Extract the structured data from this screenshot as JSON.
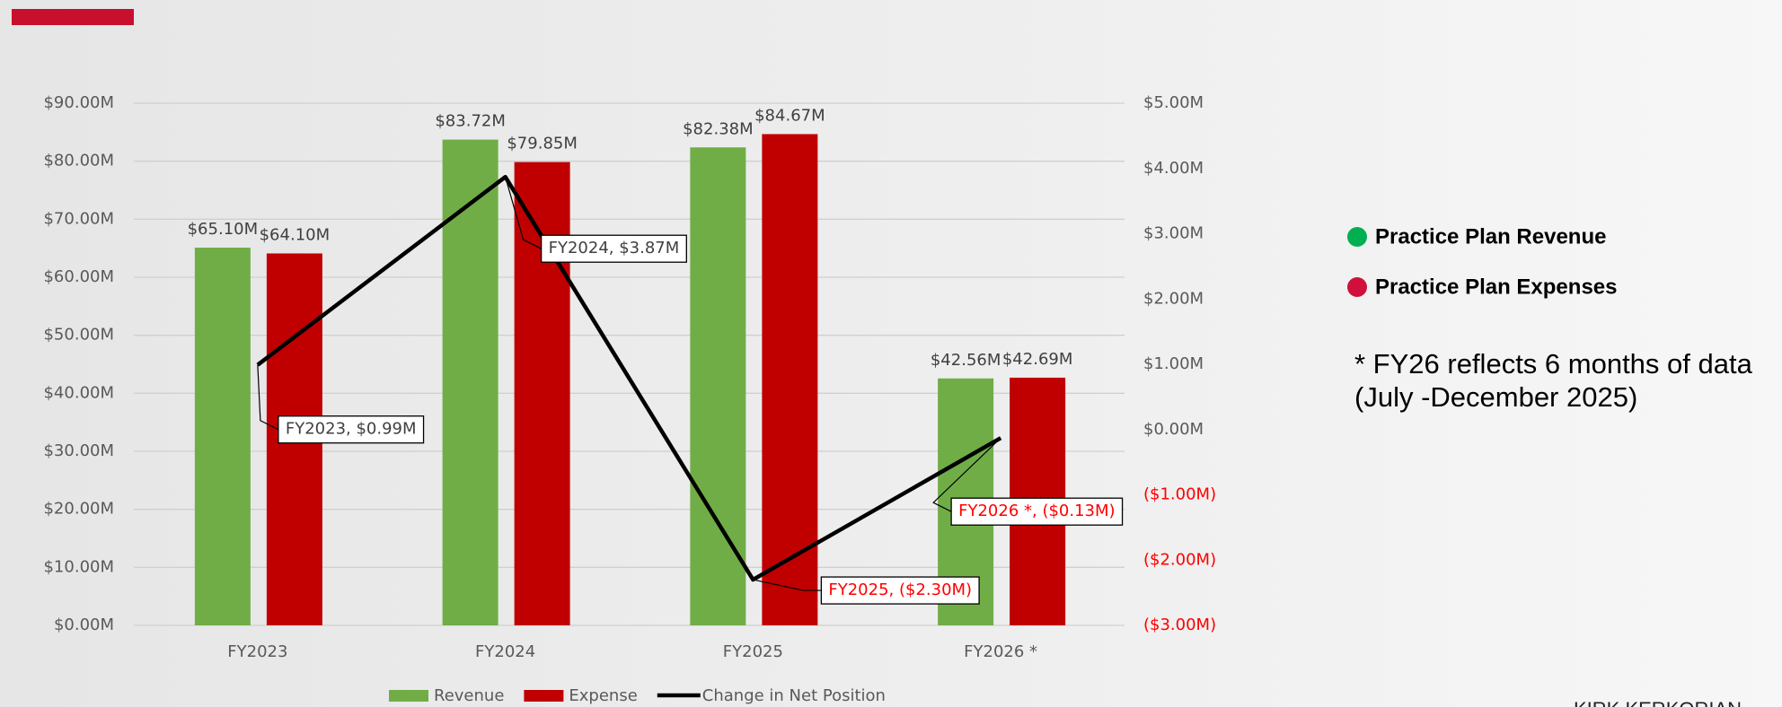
{
  "chart_data": {
    "type": "combo",
    "categories": [
      "FY2023",
      "FY2024",
      "FY2025",
      "FY2026 *"
    ],
    "series": [
      {
        "name": "Revenue",
        "type": "bar",
        "color": "#70ad47",
        "values": [
          65.1,
          83.72,
          82.38,
          42.56
        ],
        "value_labels": [
          "$65.10M",
          "$83.72M",
          "$82.38M",
          "$42.56M"
        ]
      },
      {
        "name": "Expense",
        "type": "bar",
        "color": "#c00000",
        "values": [
          64.1,
          79.85,
          84.67,
          42.69
        ],
        "value_labels": [
          "$64.10M",
          "$79.85M",
          "$84.67M",
          "$42.69M"
        ]
      },
      {
        "name": "Change in Net Position",
        "type": "line",
        "axis": "y2",
        "color": "#000000",
        "values": [
          0.99,
          3.87,
          -2.3,
          -0.13
        ],
        "value_labels": [
          "FY2023, $0.99M",
          "FY2024, $3.87M",
          "FY2025, ($2.30M)",
          "FY2026 *, ($0.13M)"
        ]
      }
    ],
    "ylim": [
      0,
      90
    ],
    "yticks": [
      {
        "value": 0,
        "label": "$0.00M"
      },
      {
        "value": 10,
        "label": "$10.00M"
      },
      {
        "value": 20,
        "label": "$20.00M"
      },
      {
        "value": 30,
        "label": "$30.00M"
      },
      {
        "value": 40,
        "label": "$40.00M"
      },
      {
        "value": 50,
        "label": "$50.00M"
      },
      {
        "value": 60,
        "label": "$60.00M"
      },
      {
        "value": 70,
        "label": "$70.00M"
      },
      {
        "value": 80,
        "label": "$80.00M"
      },
      {
        "value": 90,
        "label": "$90.00M"
      }
    ],
    "y2lim": [
      -3,
      5
    ],
    "y2ticks": [
      {
        "value": -3,
        "label": "($3.00M)"
      },
      {
        "value": -2,
        "label": "($2.00M)"
      },
      {
        "value": -1,
        "label": "($1.00M)"
      },
      {
        "value": 0,
        "label": "$0.00M"
      },
      {
        "value": 1,
        "label": "$1.00M"
      },
      {
        "value": 2,
        "label": "$2.00M"
      },
      {
        "value": 3,
        "label": "$3.00M"
      },
      {
        "value": 4,
        "label": "$4.00M"
      },
      {
        "value": 5,
        "label": "$5.00M"
      }
    ],
    "negative_color": "#ff0000",
    "grid": true,
    "legend": "bottom",
    "side_legend": [
      {
        "label": "Practice Plan Revenue",
        "color": "#00b050"
      },
      {
        "label": "Practice Plan Expenses",
        "color": "#d0103a"
      }
    ],
    "note": [
      "* FY26 reflects 6 months of data",
      "(July -December 2025)"
    ],
    "footer": "KIRK KERKORIAN"
  }
}
